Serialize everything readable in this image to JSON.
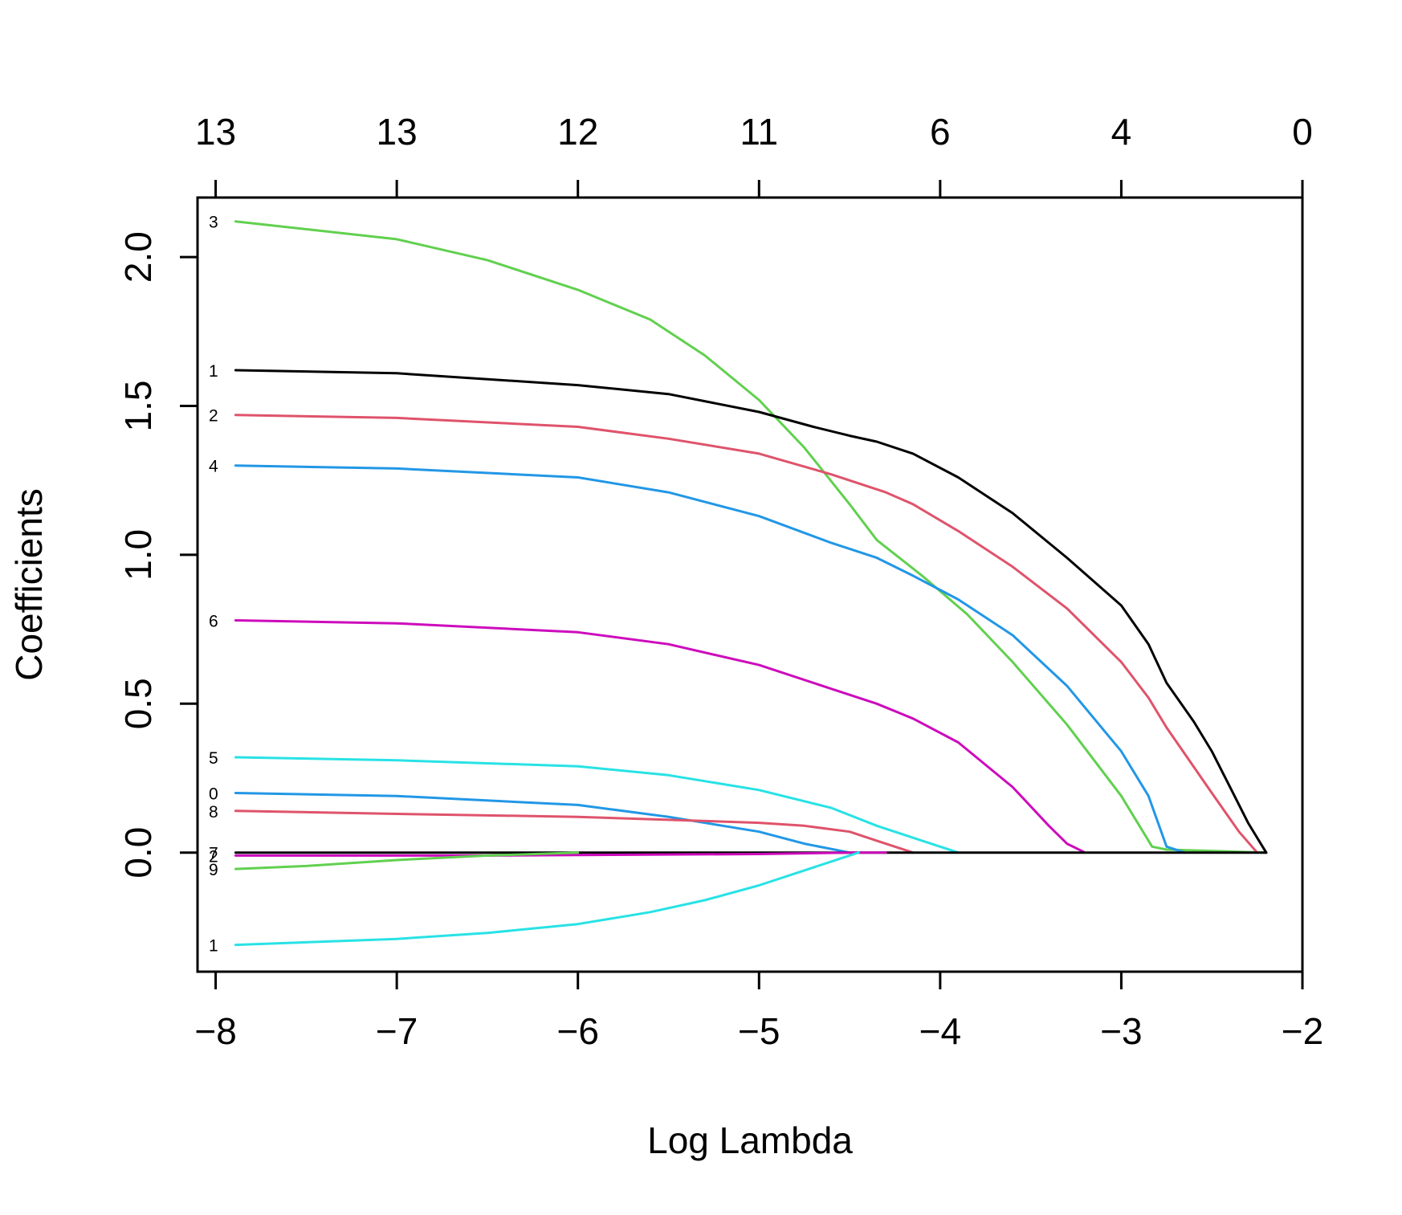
{
  "chart_data": {
    "type": "line",
    "title": "",
    "xlabel": "Log Lambda",
    "ylabel": "Coefficients",
    "xlim": [
      -8.1,
      -2.0
    ],
    "ylim": [
      -0.4,
      2.2
    ],
    "x_ticks": [
      -8,
      -7,
      -6,
      -5,
      -4,
      -3,
      -2
    ],
    "x_tick_labels": [
      "−8",
      "−7",
      "−6",
      "−5",
      "−4",
      "−3",
      "−2"
    ],
    "y_ticks": [
      0.0,
      0.5,
      1.0,
      1.5,
      2.0
    ],
    "y_tick_labels": [
      "0.0",
      "0.5",
      "1.0",
      "1.5",
      "2.0"
    ],
    "top_axis": {
      "positions": [
        -8,
        -7,
        -6,
        -5,
        -4,
        -3,
        -2
      ],
      "labels": [
        "13",
        "13",
        "12",
        "11",
        "6",
        "4",
        "0"
      ]
    },
    "grid": false,
    "series": [
      {
        "label": "3",
        "color": "#61D04F",
        "x": [
          -7.89,
          -7.0,
          -6.5,
          -6.0,
          -5.6,
          -5.3,
          -5.0,
          -4.75,
          -4.5,
          -4.35,
          -4.1,
          -3.85,
          -3.6,
          -3.3,
          -3.0,
          -2.83,
          -2.75,
          -2.2
        ],
        "y": [
          2.12,
          2.06,
          1.99,
          1.89,
          1.79,
          1.67,
          1.52,
          1.36,
          1.17,
          1.05,
          0.93,
          0.8,
          0.64,
          0.43,
          0.19,
          0.02,
          0.01,
          0.0
        ]
      },
      {
        "label": "1",
        "color": "#000000",
        "x": [
          -7.89,
          -7.0,
          -6.0,
          -5.5,
          -5.0,
          -4.7,
          -4.5,
          -4.35,
          -4.15,
          -3.9,
          -3.6,
          -3.3,
          -3.0,
          -2.85,
          -2.75,
          -2.6,
          -2.5,
          -2.4,
          -2.3,
          -2.2
        ],
        "y": [
          1.62,
          1.61,
          1.57,
          1.54,
          1.48,
          1.43,
          1.4,
          1.38,
          1.34,
          1.26,
          1.14,
          0.99,
          0.83,
          0.7,
          0.57,
          0.44,
          0.34,
          0.22,
          0.1,
          0.0
        ]
      },
      {
        "label": "2",
        "color": "#DF536B",
        "x": [
          -7.89,
          -7.0,
          -6.0,
          -5.5,
          -5.0,
          -4.6,
          -4.3,
          -4.15,
          -3.9,
          -3.6,
          -3.3,
          -3.0,
          -2.85,
          -2.75,
          -2.5,
          -2.35,
          -2.25
        ],
        "y": [
          1.47,
          1.46,
          1.43,
          1.39,
          1.34,
          1.27,
          1.21,
          1.17,
          1.08,
          0.96,
          0.82,
          0.64,
          0.52,
          0.42,
          0.2,
          0.07,
          0.0
        ]
      },
      {
        "label": "4",
        "color": "#2297E6",
        "x": [
          -7.89,
          -7.0,
          -6.0,
          -5.5,
          -5.0,
          -4.6,
          -4.35,
          -4.15,
          -3.9,
          -3.6,
          -3.3,
          -3.0,
          -2.85,
          -2.75,
          -2.65
        ],
        "y": [
          1.3,
          1.29,
          1.26,
          1.21,
          1.13,
          1.04,
          0.99,
          0.93,
          0.85,
          0.73,
          0.56,
          0.34,
          0.19,
          0.02,
          0.0
        ]
      },
      {
        "label": "6",
        "color": "#CD0BBC",
        "x": [
          -7.89,
          -7.0,
          -6.0,
          -5.5,
          -5.0,
          -4.6,
          -4.35,
          -4.15,
          -3.9,
          -3.6,
          -3.4,
          -3.3,
          -3.2
        ],
        "y": [
          0.78,
          0.77,
          0.74,
          0.7,
          0.63,
          0.55,
          0.5,
          0.45,
          0.37,
          0.22,
          0.09,
          0.03,
          0.0
        ]
      },
      {
        "label": "5",
        "color": "#28E2E5",
        "x": [
          -7.89,
          -7.0,
          -6.0,
          -5.5,
          -5.0,
          -4.6,
          -4.35,
          -4.15,
          -3.9
        ],
        "y": [
          0.32,
          0.31,
          0.29,
          0.26,
          0.21,
          0.15,
          0.09,
          0.05,
          0.0
        ]
      },
      {
        "label": "0",
        "color": "#2297E6",
        "x": [
          -7.89,
          -7.0,
          -6.0,
          -5.5,
          -5.0,
          -4.75,
          -4.5
        ],
        "y": [
          0.2,
          0.19,
          0.16,
          0.12,
          0.07,
          0.03,
          0.0
        ]
      },
      {
        "label": "8",
        "color": "#DF536B",
        "x": [
          -7.89,
          -7.0,
          -6.0,
          -5.5,
          -5.0,
          -4.75,
          -4.5,
          -4.35,
          -4.15
        ],
        "y": [
          0.14,
          0.13,
          0.12,
          0.11,
          0.1,
          0.09,
          0.07,
          0.04,
          0.0
        ]
      },
      {
        "label": "7",
        "color": "#000000",
        "x": [
          -7.89,
          -2.2
        ],
        "y": [
          0.0,
          0.0
        ]
      },
      {
        "label": "2",
        "color": "#CD0BBC",
        "x": [
          -7.89,
          -6.5,
          -5.0,
          -4.5,
          -4.3
        ],
        "y": [
          -0.01,
          -0.01,
          -0.005,
          0.0,
          0.0
        ]
      },
      {
        "label": "9",
        "color": "#61D04F",
        "x": [
          -7.89,
          -7.5,
          -7.0,
          -6.5,
          -6.0
        ],
        "y": [
          -0.055,
          -0.045,
          -0.025,
          -0.01,
          0.0
        ]
      },
      {
        "label": "1",
        "color": "#28E2E5",
        "x": [
          -7.89,
          -7.0,
          -6.5,
          -6.0,
          -5.6,
          -5.3,
          -5.0,
          -4.75,
          -4.55,
          -4.45
        ],
        "y": [
          -0.31,
          -0.29,
          -0.27,
          -0.24,
          -0.2,
          -0.16,
          -0.11,
          -0.06,
          -0.02,
          0.0
        ]
      }
    ]
  }
}
